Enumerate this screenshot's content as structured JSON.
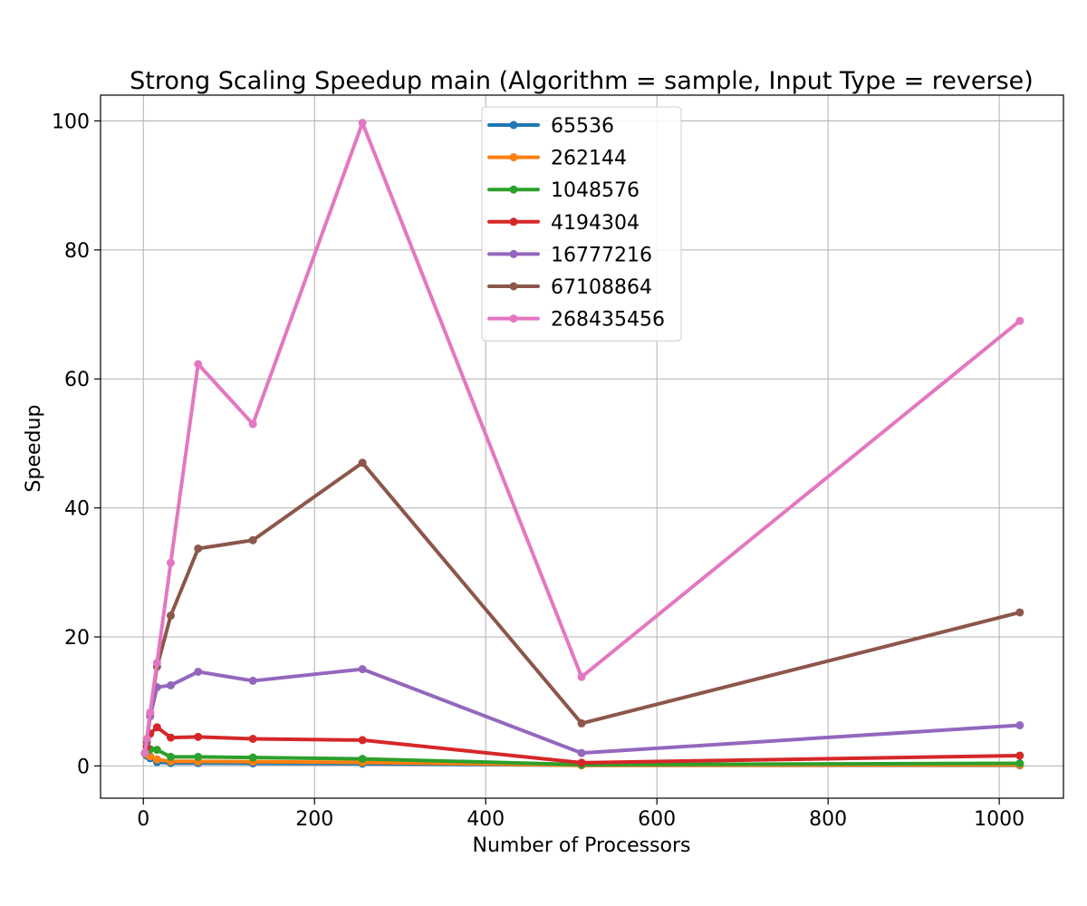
{
  "chart_data": {
    "type": "line",
    "title": "Strong Scaling Speedup main (Algorithm = sample, Input Type = reverse)",
    "xlabel": "Number of Processors",
    "ylabel": "Speedup",
    "xlim": [
      -50,
      1075
    ],
    "ylim": [
      -5,
      104
    ],
    "xticks": [
      0,
      200,
      400,
      600,
      800,
      1000
    ],
    "yticks": [
      0,
      20,
      40,
      60,
      80,
      100
    ],
    "xtick_labels": [
      "0",
      "200",
      "400",
      "600",
      "800",
      "1000"
    ],
    "ytick_labels": [
      "0",
      "20",
      "40",
      "60",
      "80",
      "100"
    ],
    "grid": true,
    "legend_position": "top-center",
    "x": [
      2,
      4,
      8,
      16,
      32,
      64,
      128,
      256,
      512,
      1024
    ],
    "series": [
      {
        "name": "65536",
        "color": "#1f77b4",
        "values": [
          1.9,
          1.6,
          1.2,
          0.6,
          0.45,
          0.45,
          0.4,
          0.35,
          0.1,
          0.1
        ]
      },
      {
        "name": "262144",
        "color": "#ff7f0e",
        "values": [
          2.0,
          1.8,
          1.5,
          1.0,
          0.7,
          0.7,
          0.65,
          0.55,
          0.1,
          0.15
        ]
      },
      {
        "name": "1048576",
        "color": "#2ca02c",
        "values": [
          2.0,
          2.2,
          2.6,
          2.5,
          1.4,
          1.4,
          1.3,
          1.1,
          0.2,
          0.4
        ]
      },
      {
        "name": "4194304",
        "color": "#d62728",
        "values": [
          2.0,
          3.0,
          5.0,
          6.0,
          4.4,
          4.5,
          4.2,
          4.0,
          0.5,
          1.6
        ]
      },
      {
        "name": "16777216",
        "color": "#9467bd",
        "values": [
          2.0,
          3.7,
          7.7,
          12.2,
          12.5,
          14.6,
          13.2,
          15.0,
          2.0,
          6.3
        ]
      },
      {
        "name": "67108864",
        "color": "#8c564b",
        "values": [
          2.0,
          3.8,
          8.2,
          15.4,
          23.3,
          33.7,
          35.0,
          47.0,
          6.6,
          23.8
        ]
      },
      {
        "name": "268435456",
        "color": "#e377c2",
        "values": [
          2.0,
          4.2,
          8.3,
          16.0,
          31.5,
          62.3,
          53.0,
          99.7,
          13.8,
          69.0
        ]
      }
    ]
  }
}
